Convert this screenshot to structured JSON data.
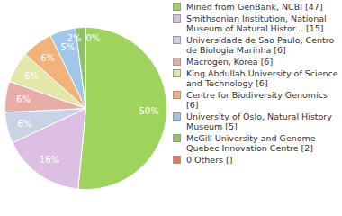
{
  "chart_data": {
    "type": "pie",
    "categories": [
      "Mined from GenBank, NCBI [47]",
      "Smithsonian Institution, National Museum of Natural Histor... [15]",
      "Universidade de Sao Paulo, Centro de Biologia Marinha [6]",
      "Macrogen, Korea [6]",
      "King Abdullah University of Science and Technology [6]",
      "Centre for Biodiversity Genomics [6]",
      "University of Oslo, Natural History Museum [5]",
      "McGill University and Genome Quebec Innovation Centre [2]",
      "0 Others []"
    ],
    "values": [
      50,
      16,
      6,
      6,
      6,
      6,
      5,
      2,
      0
    ],
    "value_labels": [
      "50%",
      "16%",
      "6%",
      "6%",
      "6%",
      "6%",
      "5%",
      "2%",
      "0%"
    ],
    "colors": [
      "#9ed35e",
      "#dcbfe2",
      "#c9d3e5",
      "#e8aca8",
      "#e3e7a9",
      "#f3b27c",
      "#a2c5ea",
      "#8fc16a",
      "#e27a5a"
    ],
    "data_labels": true,
    "legend": "right"
  }
}
